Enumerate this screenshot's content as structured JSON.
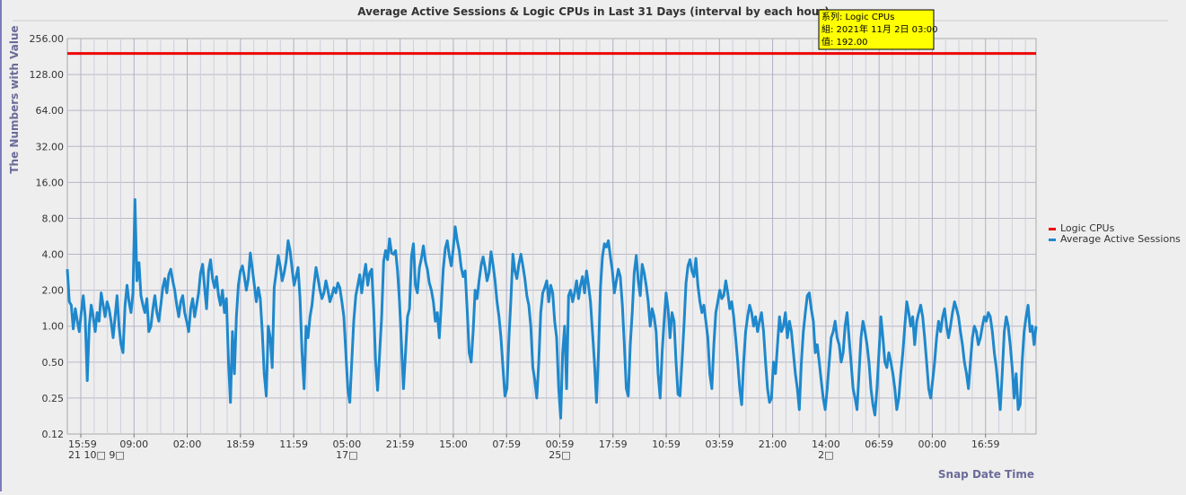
{
  "chart_data": {
    "type": "line",
    "title": "Average Active Sessions & Logic CPUs in Last 31 Days (interval by each hour)",
    "ylabel": "The Numbers with Value",
    "xlabel": "Snap Date Time",
    "yscale": "log2",
    "ylim": [
      0.125,
      256
    ],
    "yticks": [
      "256.00",
      "128.00",
      "64.00",
      "32.00",
      "16.00",
      "8.00",
      "4.00",
      "2.00",
      "1.00",
      "0.50",
      "0.25",
      "0.12"
    ],
    "xticks": [
      "15:59",
      "09:00",
      "02:00",
      "18:59",
      "11:59",
      "05:00",
      "21:59",
      "15:00",
      "07:59",
      "00:59",
      "17:59",
      "10:59",
      "03:59",
      "21:00",
      "14:00",
      "06:59",
      "00:00",
      "16:59"
    ],
    "date_labels": [
      {
        "at": "15:59",
        "text": "21 10□ 9□"
      },
      {
        "at": "05:00",
        "text": "17□"
      },
      {
        "at": "00:59",
        "text": "25□"
      },
      {
        "at": "14:00",
        "text": "2□"
      }
    ],
    "legend": {
      "position": "right"
    },
    "grid": true,
    "series": [
      {
        "name": "Logic CPUs",
        "color": "#ee0000",
        "values": [
          192,
          192
        ]
      },
      {
        "name": "Average Active Sessions",
        "color": "#1f88cc",
        "values": [
          3.0,
          1.6,
          1.5,
          0.95,
          1.4,
          1.1,
          0.9,
          1.3,
          1.8,
          1.2,
          0.35,
          1.0,
          1.5,
          1.2,
          0.9,
          1.3,
          1.1,
          1.9,
          1.5,
          1.2,
          1.6,
          1.4,
          1.1,
          0.8,
          1.2,
          1.8,
          1.0,
          0.7,
          0.6,
          1.5,
          2.2,
          1.6,
          1.3,
          1.9,
          11.5,
          2.4,
          3.4,
          1.8,
          1.5,
          1.3,
          1.7,
          0.9,
          1.0,
          1.4,
          1.8,
          1.3,
          1.1,
          1.5,
          2.1,
          2.5,
          1.9,
          2.7,
          3.0,
          2.4,
          2.0,
          1.5,
          1.2,
          1.6,
          1.8,
          1.3,
          1.1,
          0.9,
          1.4,
          1.7,
          1.2,
          1.5,
          1.9,
          2.8,
          3.3,
          2.1,
          1.4,
          2.9,
          3.6,
          2.5,
          2.1,
          2.6,
          1.8,
          1.5,
          2.0,
          1.3,
          1.7,
          0.5,
          0.23,
          0.9,
          0.4,
          1.2,
          2.2,
          2.9,
          3.2,
          2.6,
          2.0,
          2.5,
          4.1,
          3.0,
          2.2,
          1.6,
          2.1,
          1.7,
          0.9,
          0.4,
          0.26,
          1.0,
          0.8,
          0.45,
          2.1,
          2.8,
          3.9,
          3.2,
          2.4,
          2.8,
          3.5,
          5.2,
          4.3,
          3.0,
          2.2,
          2.6,
          3.1,
          1.7,
          0.6,
          0.3,
          1.0,
          0.8,
          1.2,
          1.5,
          2.2,
          3.1,
          2.5,
          2.0,
          1.7,
          1.9,
          2.4,
          2.0,
          1.6,
          1.8,
          2.1,
          1.9,
          2.3,
          2.1,
          1.6,
          1.2,
          0.6,
          0.3,
          0.23,
          0.5,
          1.1,
          1.8,
          2.2,
          2.7,
          1.9,
          2.6,
          3.3,
          2.2,
          2.8,
          3.0,
          1.4,
          0.5,
          0.29,
          0.6,
          1.2,
          3.5,
          4.3,
          3.6,
          5.4,
          4.1,
          4.0,
          4.3,
          2.9,
          1.6,
          0.7,
          0.3,
          0.6,
          1.2,
          1.4,
          3.8,
          4.9,
          2.2,
          1.9,
          3.1,
          3.7,
          4.7,
          3.5,
          3.0,
          2.3,
          2.0,
          1.6,
          1.1,
          1.3,
          0.8,
          1.5,
          3.0,
          4.5,
          5.2,
          3.9,
          3.2,
          4.4,
          6.8,
          5.2,
          4.3,
          3.1,
          2.6,
          2.9,
          1.4,
          0.6,
          0.5,
          0.9,
          2.0,
          1.7,
          2.4,
          3.2,
          3.8,
          3.1,
          2.4,
          2.8,
          4.2,
          3.3,
          2.4,
          1.6,
          1.2,
          0.8,
          0.45,
          0.26,
          0.3,
          0.8,
          1.7,
          4.0,
          2.9,
          2.5,
          3.3,
          4.0,
          3.2,
          2.5,
          1.8,
          1.5,
          1.0,
          0.45,
          0.35,
          0.25,
          0.5,
          1.3,
          1.9,
          2.1,
          2.4,
          1.6,
          2.2,
          1.9,
          1.1,
          0.8,
          0.3,
          0.17,
          0.6,
          1.0,
          0.3,
          1.8,
          2.0,
          1.6,
          1.9,
          2.4,
          1.7,
          2.2,
          2.6,
          1.9,
          2.9,
          2.2,
          1.6,
          0.9,
          0.5,
          0.23,
          0.6,
          2.1,
          3.8,
          4.9,
          4.6,
          5.2,
          3.8,
          2.9,
          1.9,
          2.4,
          3.0,
          2.6,
          1.5,
          0.7,
          0.3,
          0.26,
          0.7,
          1.3,
          2.8,
          3.9,
          2.4,
          1.8,
          3.3,
          2.8,
          2.2,
          1.6,
          1.0,
          1.4,
          1.2,
          0.9,
          0.4,
          0.25,
          0.6,
          1.1,
          1.9,
          1.4,
          0.8,
          1.3,
          1.1,
          0.5,
          0.27,
          0.26,
          0.5,
          1.0,
          2.3,
          3.2,
          3.6,
          2.9,
          2.6,
          3.7,
          2.2,
          1.6,
          1.3,
          1.5,
          1.1,
          0.8,
          0.4,
          0.3,
          0.7,
          1.3,
          1.6,
          2.0,
          1.7,
          1.8,
          2.4,
          1.9,
          1.4,
          1.6,
          1.2,
          0.8,
          0.5,
          0.3,
          0.22,
          0.5,
          0.9,
          1.2,
          1.5,
          1.3,
          1.0,
          1.2,
          0.9,
          1.1,
          1.3,
          0.9,
          0.5,
          0.3,
          0.23,
          0.25,
          0.5,
          0.4,
          0.7,
          1.2,
          0.9,
          1.0,
          1.3,
          0.8,
          1.1,
          0.9,
          0.6,
          0.4,
          0.3,
          0.2,
          0.5,
          0.9,
          1.3,
          1.8,
          1.9,
          1.4,
          1.1,
          0.6,
          0.7,
          0.5,
          0.35,
          0.25,
          0.2,
          0.3,
          0.5,
          0.8,
          0.9,
          1.1,
          0.8,
          0.7,
          0.5,
          0.6,
          1.0,
          1.3,
          0.8,
          0.5,
          0.3,
          0.25,
          0.2,
          0.4,
          0.8,
          1.1,
          0.9,
          0.7,
          0.5,
          0.3,
          0.22,
          0.18,
          0.3,
          0.6,
          1.2,
          0.8,
          0.5,
          0.45,
          0.6,
          0.5,
          0.4,
          0.3,
          0.2,
          0.25,
          0.4,
          0.6,
          1.0,
          1.6,
          1.3,
          1.0,
          1.2,
          0.7,
          1.1,
          1.3,
          1.5,
          1.2,
          0.8,
          0.5,
          0.3,
          0.25,
          0.35,
          0.5,
          0.8,
          1.1,
          0.9,
          1.2,
          1.4,
          1.0,
          0.8,
          1.0,
          1.3,
          1.6,
          1.4,
          1.2,
          0.9,
          0.7,
          0.5,
          0.4,
          0.3,
          0.5,
          0.8,
          1.0,
          0.9,
          0.7,
          0.8,
          1.0,
          1.2,
          1.1,
          1.3,
          1.2,
          0.9,
          0.6,
          0.45,
          0.3,
          0.2,
          0.4,
          0.9,
          1.2,
          1.0,
          0.7,
          0.45,
          0.25,
          0.4,
          0.2,
          0.22,
          0.5,
          0.9,
          1.2,
          1.5,
          0.9,
          1.0,
          0.7,
          1.0
        ]
      }
    ]
  },
  "tooltip": {
    "series_line": "系列: Logic CPUs",
    "group_line": "組: 2021年 11月 2日 03:00",
    "value_line": "值: 192.00"
  }
}
